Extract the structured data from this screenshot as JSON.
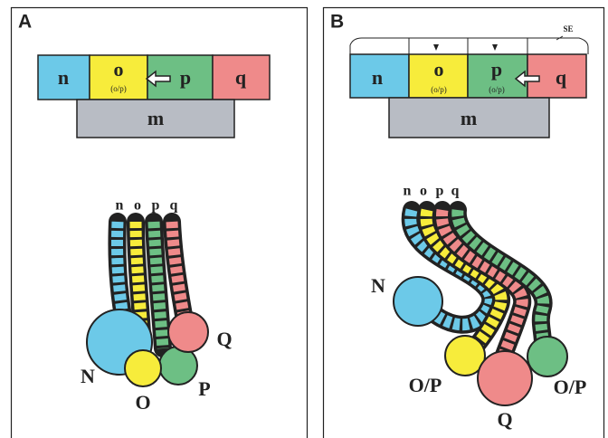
{
  "panels": [
    {
      "label": "A",
      "blocks": [
        {
          "label": "n"
        },
        {
          "label": "o",
          "sublabel": "(o/p)"
        },
        {
          "label": "p"
        },
        {
          "label": "q"
        }
      ],
      "base": "m",
      "columns": [
        "n",
        "o",
        "p",
        "q"
      ],
      "bulbs": [
        "N",
        "O",
        "P",
        "Q"
      ]
    },
    {
      "label": "B",
      "annotation": "SE",
      "blocks": [
        {
          "label": "n"
        },
        {
          "label": "o",
          "sublabel": "(o/p)"
        },
        {
          "label": "p",
          "sublabel": "(o/p)"
        },
        {
          "label": "q"
        }
      ],
      "base": "m",
      "columns": [
        "n",
        "o",
        "p",
        "q"
      ],
      "bulbs": [
        "N",
        "O/P",
        "O/P",
        "Q"
      ]
    }
  ]
}
